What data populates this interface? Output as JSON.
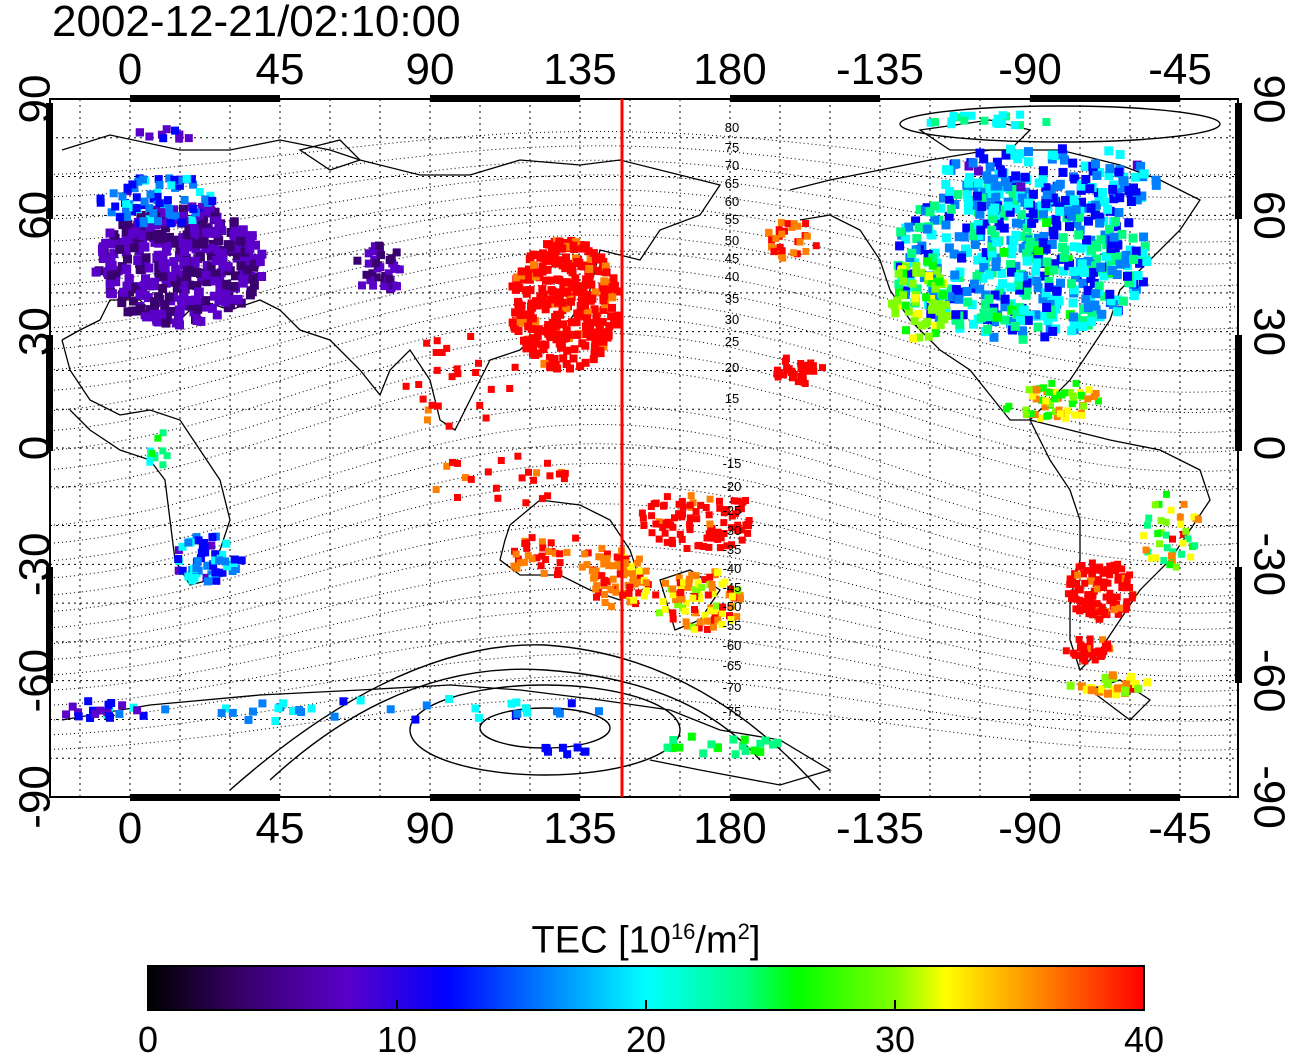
{
  "timestamp": "2002-12-21/02:10:00",
  "map": {
    "lon_ticks": [
      "0",
      "45",
      "90",
      "135",
      "180",
      "-135",
      "-90",
      "-45"
    ],
    "lat_ticks": [
      "90",
      "60",
      "30",
      "0",
      "-30",
      "-60",
      "-90"
    ],
    "contour_labels": [
      "80",
      "75",
      "70",
      "65",
      "60",
      "55",
      "50",
      "45",
      "40",
      "35",
      "30",
      "25",
      "20",
      "15",
      "-15",
      "-20",
      "-25",
      "-30",
      "-35",
      "-40",
      "-45",
      "-50",
      "-55",
      "-60",
      "-65",
      "-70",
      "-75"
    ],
    "meridian_line_color": "#ff0000",
    "meridian_line_lon": 147
  },
  "colorbar": {
    "title_prefix": "TEC  [10",
    "title_exp1": "16",
    "title_mid": "/m",
    "title_exp2": "2",
    "title_suffix": "]",
    "tick_labels": [
      "0",
      "10",
      "20",
      "30",
      "40"
    ],
    "min": 0,
    "max": 40,
    "colors": [
      "#000000",
      "#3a0070",
      "#5a00c8",
      "#0000ff",
      "#0080ff",
      "#00ffff",
      "#00ff80",
      "#00ff00",
      "#80ff00",
      "#ffff00",
      "#ff8000",
      "#ff0000"
    ]
  }
}
